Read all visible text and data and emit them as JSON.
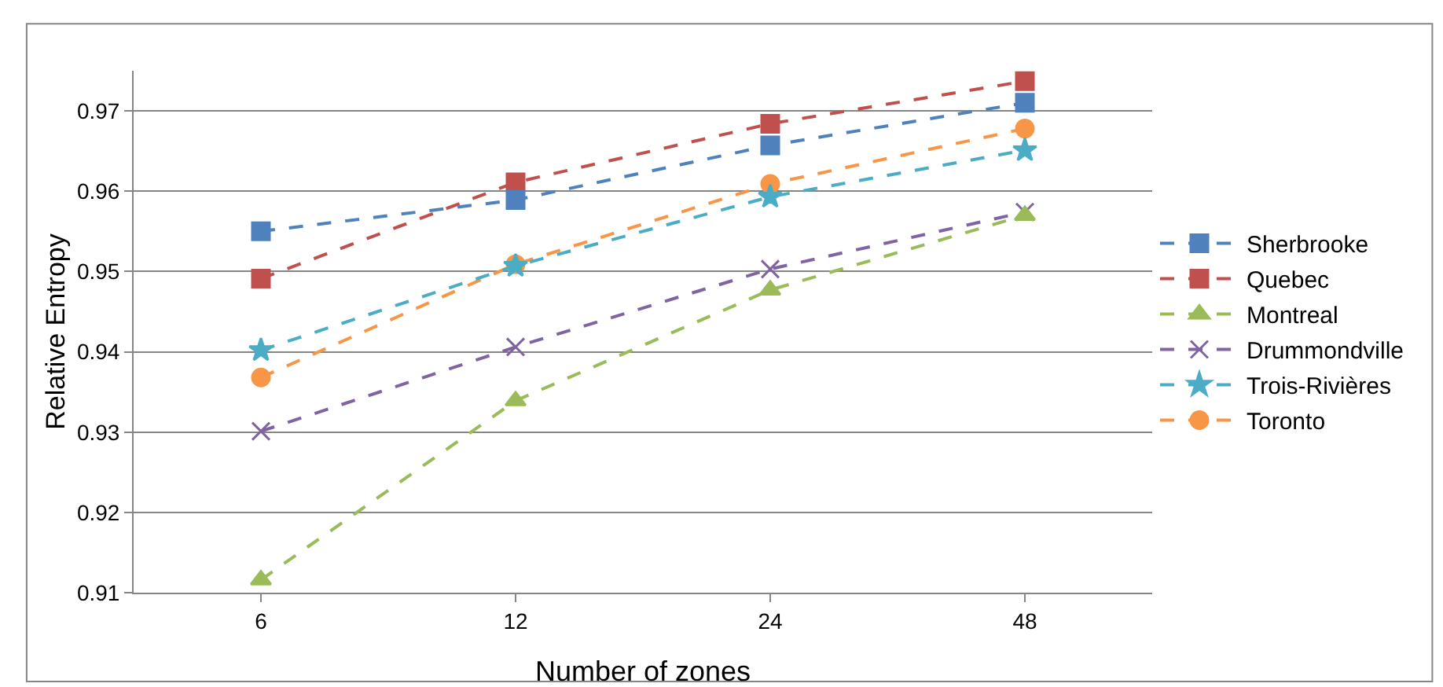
{
  "chart_data": {
    "type": "line",
    "xlabel": "Number of zones",
    "ylabel": "Relative Entropy",
    "categories": [
      "6",
      "12",
      "24",
      "48"
    ],
    "ylim": [
      0.91,
      0.975
    ],
    "yticks": [
      0.91,
      0.92,
      0.93,
      0.94,
      0.95,
      0.96,
      0.97
    ],
    "grid": "y",
    "legend": "right",
    "line_style": "dashed",
    "series": [
      {
        "name": "Sherbrooke",
        "color": "#4f81bd",
        "marker": "square",
        "values": [
          0.955,
          0.9589,
          0.9657,
          0.971
        ]
      },
      {
        "name": "Quebec",
        "color": "#c0504d",
        "marker": "square",
        "values": [
          0.9491,
          0.9611,
          0.9684,
          0.9737
        ]
      },
      {
        "name": "Montreal",
        "color": "#9bbb59",
        "marker": "triangle",
        "values": [
          0.9116,
          0.9339,
          0.9477,
          0.957
        ]
      },
      {
        "name": "Drummondville",
        "color": "#8064a2",
        "marker": "cross",
        "values": [
          0.9301,
          0.9406,
          0.9503,
          0.9574
        ]
      },
      {
        "name": "Trois-Rivières",
        "color": "#4bacc6",
        "marker": "star",
        "values": [
          0.9402,
          0.9507,
          0.9593,
          0.9651
        ]
      },
      {
        "name": "Toronto",
        "color": "#f79646",
        "marker": "circle",
        "values": [
          0.9368,
          0.9509,
          0.9609,
          0.9678
        ]
      }
    ]
  }
}
